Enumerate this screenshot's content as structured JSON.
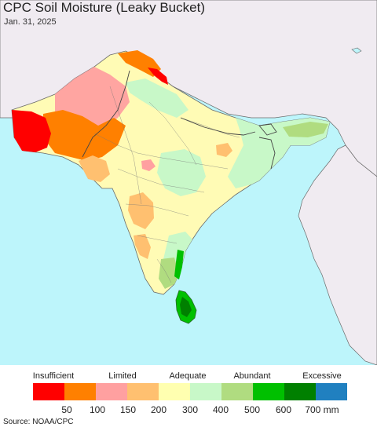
{
  "title": "CPC Soil Moisture (Leaky Bucket)",
  "date": "Jan. 31, 2025",
  "colors": {
    "ocean": "#bdf5fb",
    "outside_land": "#f0ebf1",
    "land_base": "#fffbb5",
    "border": "#6a6a6a"
  },
  "legend": {
    "categories": [
      {
        "label": "Insufficient"
      },
      {
        "label": "Limited"
      },
      {
        "label": "Adequate"
      },
      {
        "label": "Abundant"
      },
      {
        "label": "Excessive"
      }
    ],
    "swatches": [
      {
        "color": "#ff0000"
      },
      {
        "color": "#ff8000"
      },
      {
        "color": "#ffa0a0"
      },
      {
        "color": "#ffc070"
      },
      {
        "color": "#ffffb0"
      },
      {
        "color": "#c8f8c8"
      },
      {
        "color": "#b0dc80"
      },
      {
        "color": "#00c000"
      },
      {
        "color": "#008000"
      },
      {
        "color": "#2080c0"
      }
    ],
    "ticks": [
      "50",
      "100",
      "150",
      "200",
      "300",
      "400",
      "500",
      "600",
      "700 mm"
    ]
  },
  "source": "Source: NOAA/CPC"
}
